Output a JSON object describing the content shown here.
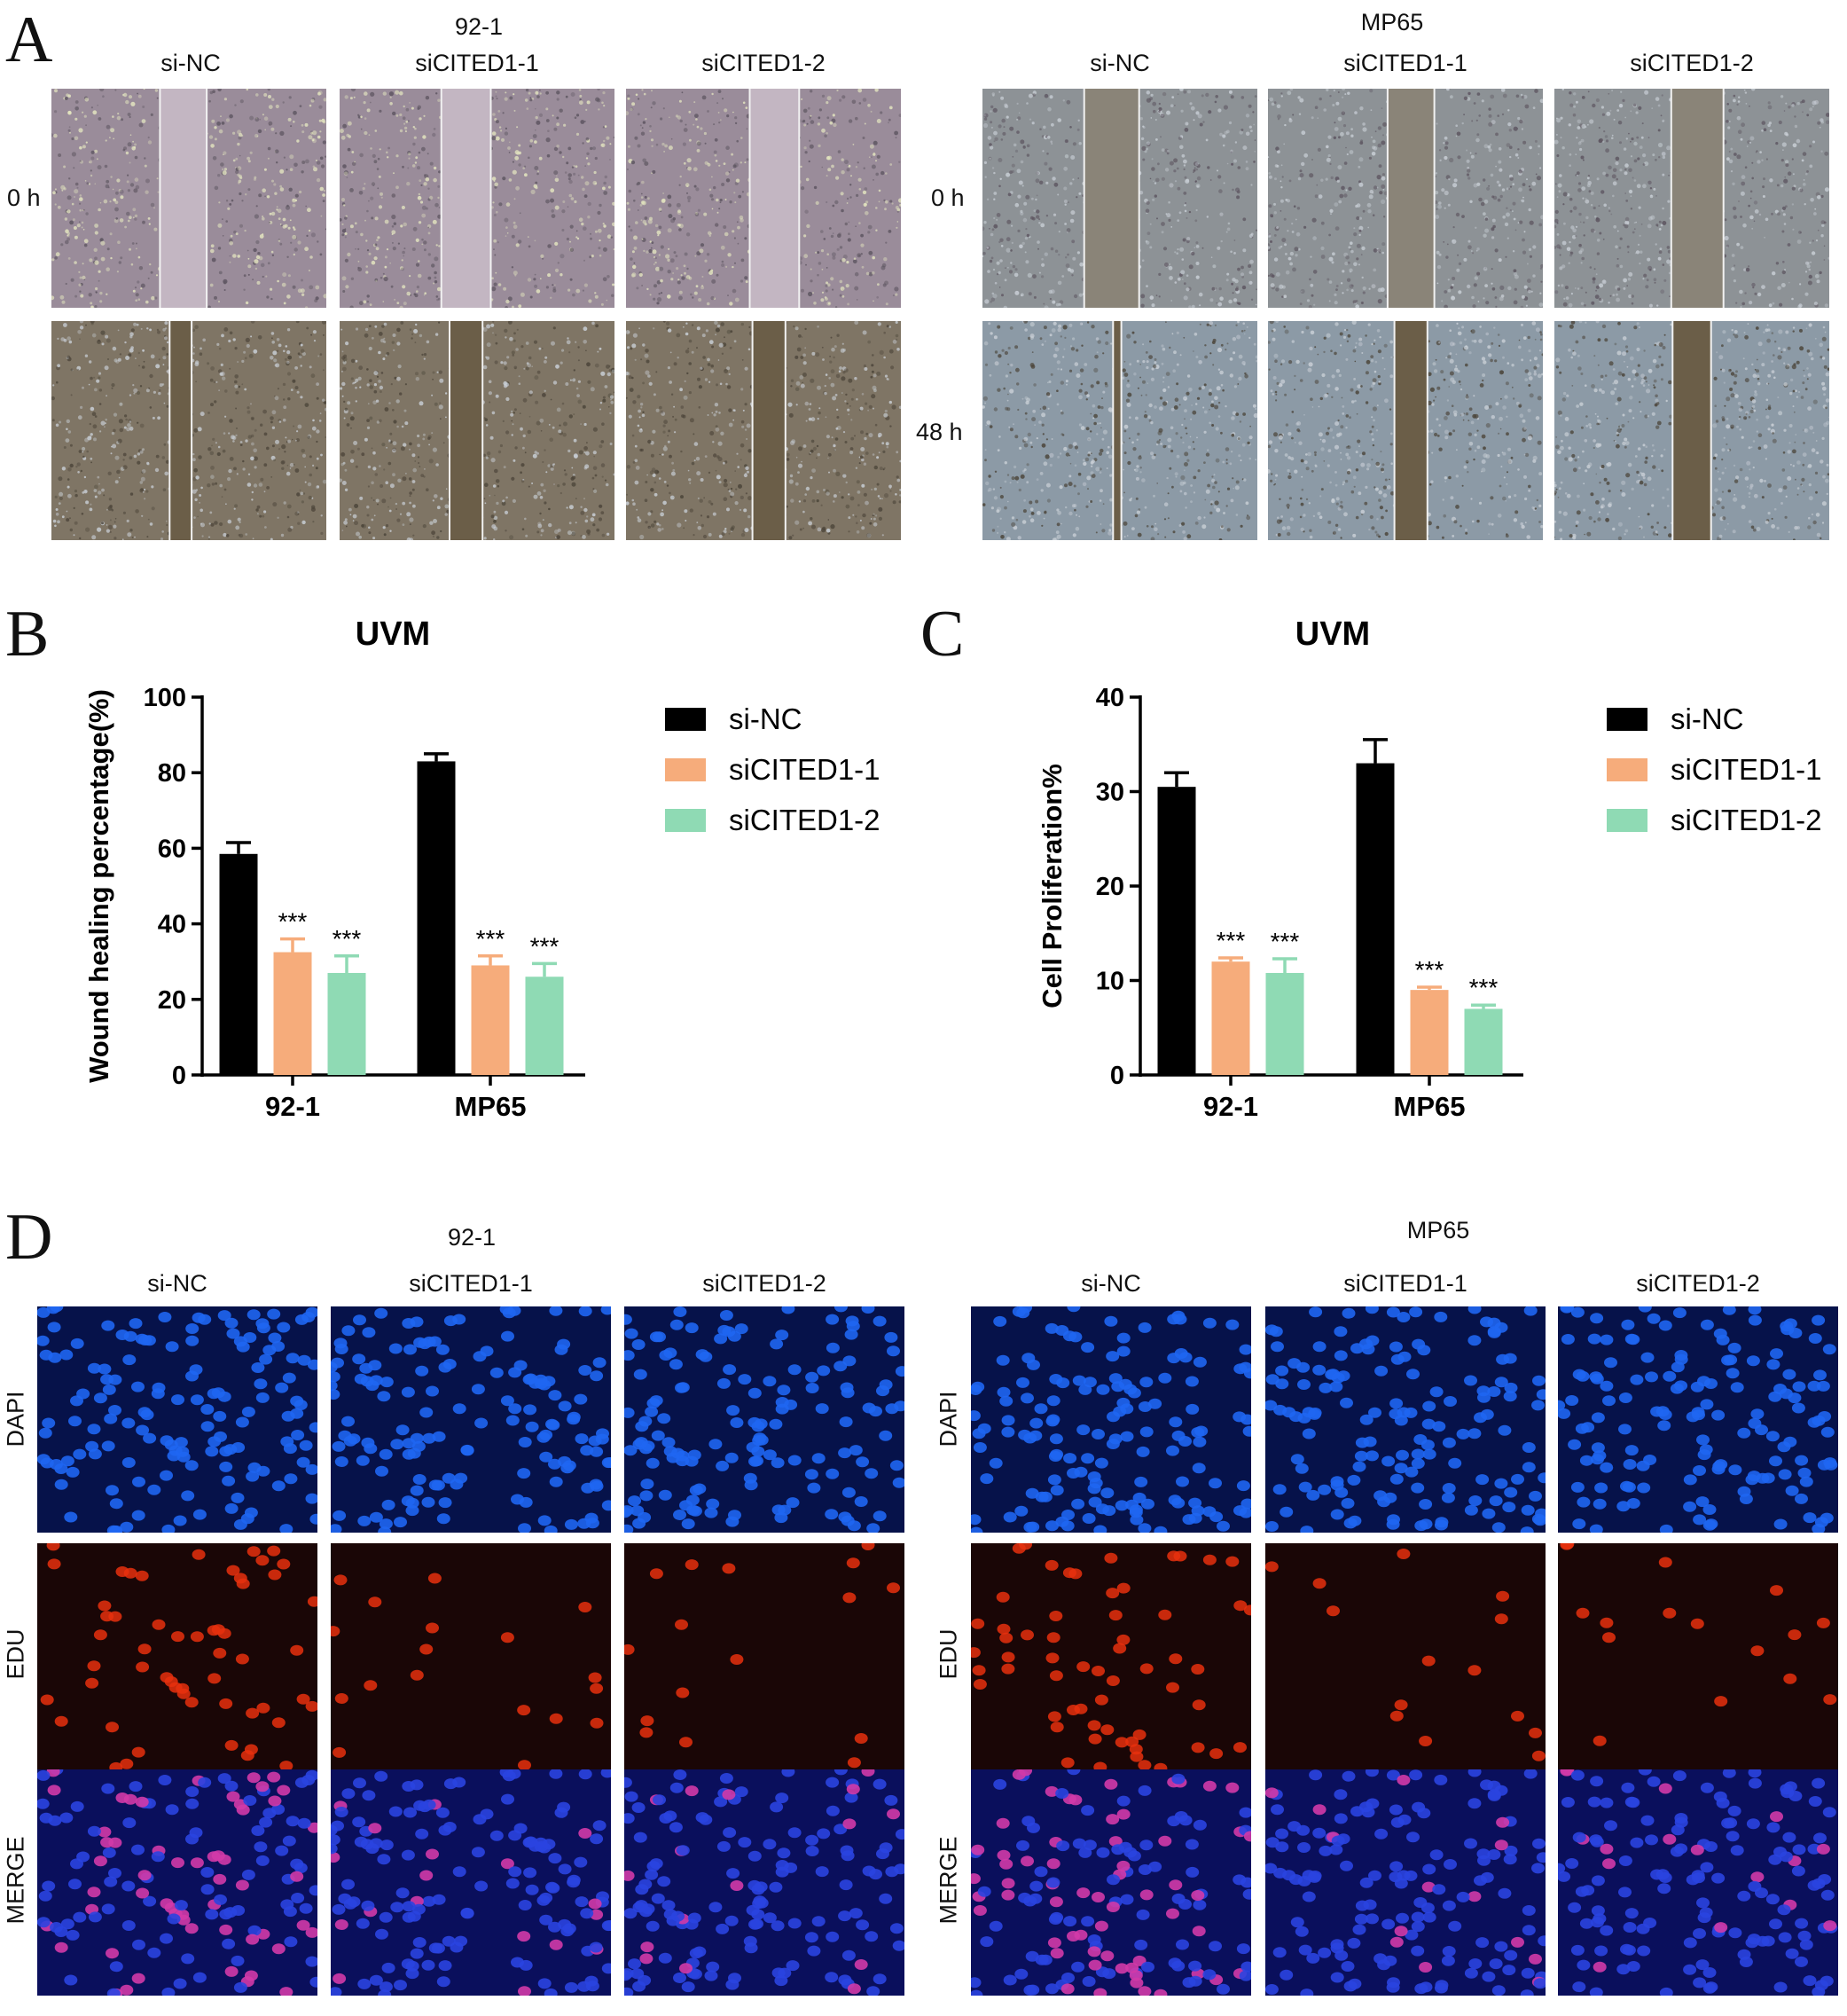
{
  "panel_A": {
    "letter": "A",
    "groups": [
      {
        "cell_line": "92-1",
        "conditions": [
          "si-NC",
          "siCITED1-1",
          "siCITED1-2"
        ],
        "row_labels": [
          "0 h",
          ""
        ]
      },
      {
        "cell_line": "MP65",
        "conditions": [
          "si-NC",
          "siCITED1-1",
          "siCITED1-2"
        ],
        "row_labels": [
          "0 h",
          "48 h"
        ]
      }
    ],
    "image_style": {
      "0h_left": "#9a8c9a",
      "0h_right": "#8d9296",
      "48h_left": "#7f7565",
      "48h_right": "#8c9aa6",
      "gap_0h_left": "#c3b6c2",
      "gap_0h_right": "#8a8478",
      "gap_48h": "#6b5e48"
    }
  },
  "panel_B": {
    "letter": "B",
    "chart_data": {
      "type": "bar",
      "title": "UVM",
      "ylabel": "Wound healing percentage(%)",
      "xlabel": "",
      "categories": [
        "92-1",
        "MP65"
      ],
      "ylim": [
        0,
        100
      ],
      "yticks": [
        "0",
        "20",
        "40",
        "60",
        "80",
        "100"
      ],
      "series": [
        {
          "name": "si-NC",
          "values": [
            58.5,
            83
          ],
          "errors": [
            3.0,
            2.0
          ],
          "color": "#000000",
          "stars": [
            "",
            ""
          ]
        },
        {
          "name": "siCITED1-1",
          "values": [
            32.5,
            29
          ],
          "errors": [
            3.5,
            2.5
          ],
          "color": "#f6ac7b",
          "stars": [
            "***",
            "***"
          ]
        },
        {
          "name": "siCITED1-2",
          "values": [
            27,
            26
          ],
          "errors": [
            4.5,
            3.5
          ],
          "color": "#8fdab4",
          "stars": [
            "***",
            "***"
          ]
        }
      ],
      "legend_position": "right"
    }
  },
  "panel_C": {
    "letter": "C",
    "chart_data": {
      "type": "bar",
      "title": "UVM",
      "ylabel": "Cell Proliferation%",
      "xlabel": "",
      "categories": [
        "92-1",
        "MP65"
      ],
      "ylim": [
        0,
        40
      ],
      "yticks": [
        "0",
        "10",
        "20",
        "30",
        "40"
      ],
      "series": [
        {
          "name": "si-NC",
          "values": [
            30.5,
            33
          ],
          "errors": [
            1.5,
            2.5
          ],
          "color": "#000000",
          "stars": [
            "",
            ""
          ]
        },
        {
          "name": "siCITED1-1",
          "values": [
            12,
            9
          ],
          "errors": [
            0.4,
            0.3
          ],
          "color": "#f6ac7b",
          "stars": [
            "***",
            "***"
          ]
        },
        {
          "name": "siCITED1-2",
          "values": [
            10.8,
            7
          ],
          "errors": [
            1.5,
            0.4
          ],
          "color": "#8fdab4",
          "stars": [
            "***",
            "***"
          ]
        }
      ],
      "legend_position": "right"
    }
  },
  "panel_D": {
    "letter": "D",
    "groups": [
      {
        "cell_line": "92-1",
        "conditions": [
          "si-NC",
          "siCITED1-1",
          "siCITED1-2"
        ]
      },
      {
        "cell_line": "MP65",
        "conditions": [
          "si-NC",
          "siCITED1-1",
          "siCITED1-2"
        ]
      }
    ],
    "stains": [
      "DAPI",
      "EDU",
      "MERGE"
    ],
    "stain_colors": {
      "DAPI": {
        "bg": "#06124a",
        "dot": "#1f66f2"
      },
      "EDU": {
        "bg": "#1a0606",
        "dot": "#e8300e"
      },
      "MERGE": {
        "bg": "#0a0f5c",
        "dot": "#2a44e0",
        "dot2": "#d23aa8"
      }
    }
  }
}
